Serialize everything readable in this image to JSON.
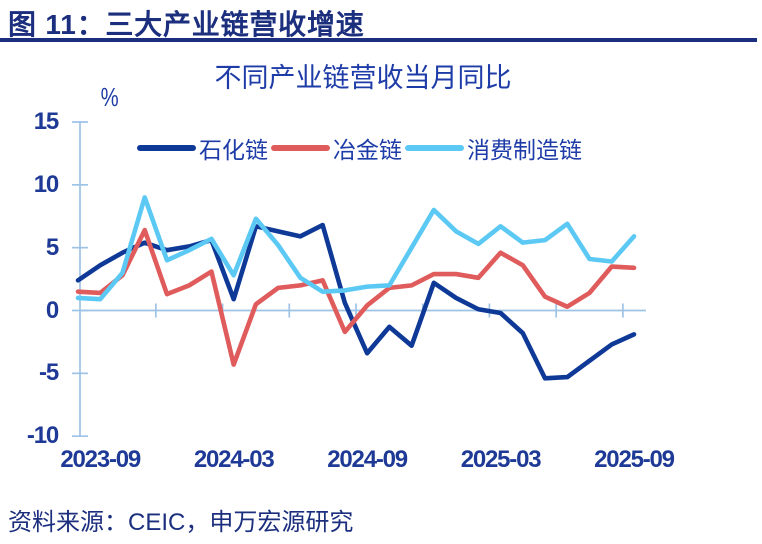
{
  "header": {
    "title": "图 11：三大产业链营收增速"
  },
  "chart": {
    "title": "不同产业链营收当月同比",
    "unit": "%"
  },
  "footer": {
    "source": "资料来源：CEIC，申万宏源研究"
  },
  "colors": {
    "axis": "#9dc3e6",
    "text": "#1e3a96",
    "header": "#1b2f7e"
  },
  "chart_data": {
    "type": "line",
    "title": "不同产业链营收当月同比",
    "ylabel": "%",
    "ylim": [
      -10,
      15
    ],
    "yticks": [
      15,
      10,
      5,
      0,
      -5,
      -10
    ],
    "xtick_labels": [
      "2023-09",
      "2024-03",
      "2024-09",
      "2025-03",
      "2025-09"
    ],
    "x_months": [
      "2023-08",
      "2023-09",
      "2023-10",
      "2023-11",
      "2023-12",
      "2024-01",
      "2024-02",
      "2024-03",
      "2024-04",
      "2024-05",
      "2024-06",
      "2024-07",
      "2024-08",
      "2024-09",
      "2024-10",
      "2024-11",
      "2024-12",
      "2025-01",
      "2025-02",
      "2025-03",
      "2025-04",
      "2025-05",
      "2025-06",
      "2025-07",
      "2025-08",
      "2025-09"
    ],
    "series": [
      {
        "name": "石化链",
        "color": "#0e3997",
        "values": [
          2.4,
          3.6,
          4.6,
          5.4,
          4.8,
          5.1,
          5.6,
          0.9,
          6.7,
          6.3,
          5.9,
          6.8,
          0.6,
          -3.4,
          -1.3,
          -2.8,
          2.2,
          1.0,
          0.1,
          -0.2,
          -1.8,
          -5.4,
          -5.3,
          -4.0,
          -2.7,
          -1.9
        ]
      },
      {
        "name": "冶金链",
        "color": "#e05c5c",
        "values": [
          1.5,
          1.4,
          2.8,
          6.4,
          1.3,
          2.0,
          3.1,
          -4.3,
          0.5,
          1.8,
          2.0,
          2.4,
          -1.7,
          0.4,
          1.8,
          2.0,
          2.9,
          2.9,
          2.6,
          4.6,
          3.6,
          1.1,
          0.3,
          1.4,
          3.5,
          3.4
        ]
      },
      {
        "name": "消费制造链",
        "color": "#5bc9f4",
        "values": [
          1.0,
          0.9,
          3.0,
          9.0,
          4.0,
          4.8,
          5.7,
          2.8,
          7.3,
          5.2,
          2.6,
          1.5,
          1.6,
          1.9,
          2.0,
          5.0,
          8.0,
          6.3,
          5.3,
          6.7,
          5.4,
          5.6,
          6.9,
          4.1,
          3.9,
          5.9
        ]
      }
    ],
    "legend_position": "top",
    "grid": false
  }
}
